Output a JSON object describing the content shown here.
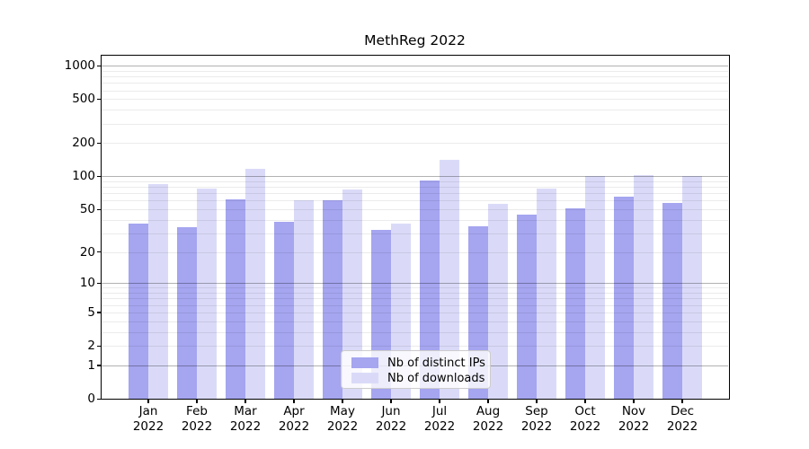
{
  "chart_data": {
    "type": "bar",
    "title": "MethReg 2022",
    "categories": [
      "Jan 2022",
      "Feb 2022",
      "Mar 2022",
      "Apr 2022",
      "May 2022",
      "Jun 2022",
      "Jul 2022",
      "Aug 2022",
      "Sep 2022",
      "Oct 2022",
      "Nov 2022",
      "Dec 2022"
    ],
    "series": [
      {
        "name": "Nb of distinct IPs",
        "color": "#a5a5f0",
        "values": [
          37,
          34,
          62,
          38,
          60,
          32,
          92,
          35,
          45,
          51,
          65,
          57
        ]
      },
      {
        "name": "Nb of downloads",
        "color": "#dadaf8",
        "values": [
          85,
          77,
          118,
          60,
          76,
          37,
          140,
          56,
          78,
          100,
          102,
          100
        ]
      }
    ],
    "yscale": "log1p",
    "ylim": [
      0,
      1258
    ],
    "yticks": [
      0,
      1,
      2,
      5,
      10,
      20,
      50,
      100,
      200,
      500,
      1000
    ],
    "minor_yticks": [
      2,
      3,
      4,
      5,
      6,
      7,
      8,
      9,
      20,
      30,
      40,
      50,
      60,
      70,
      80,
      90,
      200,
      300,
      400,
      500,
      600,
      700,
      800,
      900
    ],
    "major_gridlines": [
      1,
      10,
      100,
      1000
    ],
    "grid": {
      "major_color": "rgba(0,0,0,0.30)",
      "minor_color": "rgba(0,0,0,0.08)",
      "on_top_of_bars": true
    },
    "legend_position": "lower center",
    "xlabel": "",
    "ylabel": ""
  }
}
